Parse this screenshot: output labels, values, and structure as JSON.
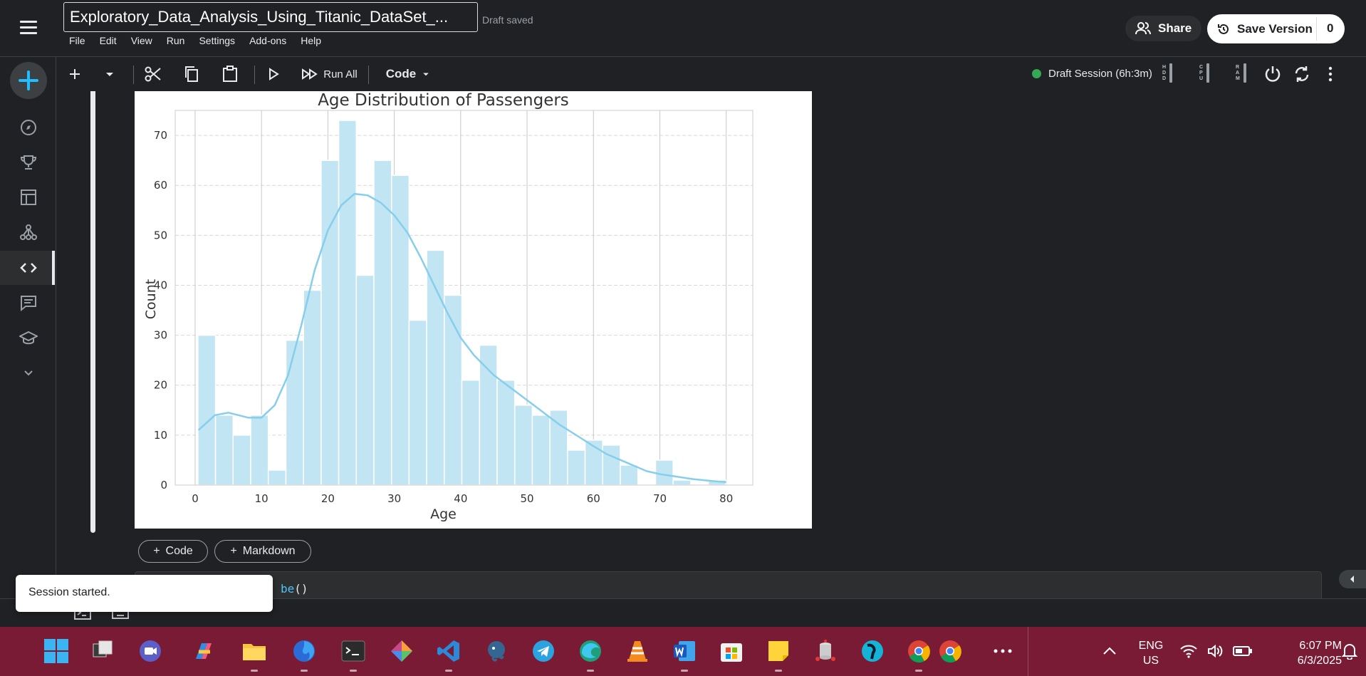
{
  "header": {
    "notebook_title": "Exploratory_Data_Analysis_Using_Titanic_DataSet_...",
    "save_status": "Draft saved",
    "menus": [
      "File",
      "Edit",
      "View",
      "Run",
      "Settings",
      "Add-ons",
      "Help"
    ],
    "share_label": "Share",
    "save_version_label": "Save Version",
    "save_version_count": "0"
  },
  "toolbar": {
    "run_all_label": "Run All",
    "cell_type": "Code",
    "session_label": "Draft Session (6h:3m)",
    "meters": [
      {
        "name": "HDD",
        "letters": [
          "H",
          "D",
          "D"
        ]
      },
      {
        "name": "CPU",
        "letters": [
          "C",
          "P",
          "U"
        ]
      },
      {
        "name": "RAM",
        "letters": [
          "R",
          "A",
          "M"
        ]
      }
    ]
  },
  "nav": {
    "items": [
      "create-icon",
      "compass-icon",
      "trophy-icon",
      "table-icon",
      "models-icon",
      "code-icon",
      "discussion-icon",
      "learn-icon",
      "more-icon"
    ],
    "active": "code-icon"
  },
  "cell": {
    "add_code_label": "Code",
    "add_markdown_label": "Markdown",
    "next_cell_code_visible": "be",
    "next_cell_code_suffix": "()"
  },
  "toast": {
    "message": "Session started."
  },
  "chart_data": {
    "type": "bar",
    "title": "Age Distribution of Passengers",
    "xlabel": "Age",
    "ylabel": "Count",
    "xlim": [
      -3,
      84
    ],
    "ylim": [
      0,
      75
    ],
    "xticks": [
      0,
      10,
      20,
      30,
      40,
      50,
      60,
      70,
      80
    ],
    "yticks": [
      0,
      10,
      20,
      30,
      40,
      50,
      60,
      70
    ],
    "grid": true,
    "bin_edges": [
      0.42,
      3.07,
      5.72,
      8.37,
      11.02,
      13.68,
      16.33,
      18.98,
      21.63,
      24.28,
      26.93,
      29.58,
      32.23,
      34.88,
      37.53,
      40.18,
      42.84,
      45.49,
      48.14,
      50.79,
      53.44,
      56.09,
      58.74,
      61.39,
      64.04,
      66.69,
      69.35,
      72.0,
      74.65,
      77.3,
      79.95
    ],
    "values": [
      30,
      14,
      10,
      14,
      3,
      29,
      39,
      65,
      73,
      42,
      65,
      62,
      33,
      47,
      38,
      21,
      28,
      21,
      16,
      14,
      15,
      7,
      9,
      8,
      4,
      0,
      5,
      1,
      0,
      1
    ],
    "kde": {
      "x": [
        0.5,
        3,
        5,
        8,
        10,
        12,
        14,
        16,
        18,
        20,
        22,
        24,
        26,
        28,
        30,
        32,
        34,
        36,
        38,
        40,
        42,
        45,
        48,
        50,
        52,
        55,
        58,
        60,
        62,
        65,
        68,
        70,
        72,
        75,
        78,
        80
      ],
      "y": [
        11,
        14,
        14.5,
        13.5,
        13.5,
        16,
        22,
        32,
        43,
        51,
        56,
        58.3,
        58,
        56.5,
        54,
        50.5,
        45.5,
        40,
        34.5,
        29.5,
        26,
        22,
        19,
        17,
        15,
        12,
        9.5,
        7.8,
        6.2,
        4.5,
        2.8,
        2.2,
        1.8,
        1.2,
        0.8,
        0.6
      ]
    },
    "bar_color": "#c2e5f4",
    "kde_color": "#87ceeb"
  },
  "taskbar": {
    "apps": [
      "windows-start",
      "task-view",
      "meet-app",
      "copilot-app",
      "file-explorer",
      "firefox",
      "terminal",
      "git-app",
      "vscode",
      "postgres",
      "telegram",
      "edge-app",
      "vlc",
      "word",
      "store",
      "sticky-notes",
      "db-app",
      "vpn-app",
      "chrome-profile-1",
      "chrome-profile-2"
    ],
    "lang_line1": "ENG",
    "lang_line2": "US",
    "time": "6:07 PM",
    "date": "6/3/2025"
  },
  "colors": {
    "background": "#202124",
    "accent_blue": "#20beff",
    "taskbar": "#7a1b35",
    "session_green": "#34a853"
  }
}
